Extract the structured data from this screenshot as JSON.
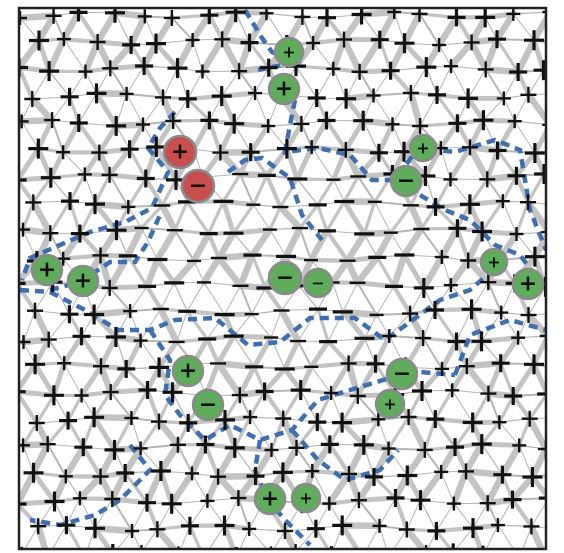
{
  "colors": {
    "frame": "#222222",
    "bond": "#c3c3c3",
    "bond_thin": "#b5b5b5",
    "domain_wall": "#3f6fb0",
    "sign": "#111111",
    "defect_green_fill": "#5fad5c",
    "defect_green_ring": "#8a8a8a",
    "defect_red_fill": "#c94f4f",
    "defect_red_ring": "#8a8a8a"
  },
  "lattice": {
    "type": "triangular",
    "regions": [
      {
        "name": "plus-outer",
        "sign": "+"
      },
      {
        "name": "minus-inner",
        "sign": "−"
      },
      {
        "name": "plus-lower",
        "sign": "+"
      }
    ]
  },
  "defects": [
    {
      "id": "g-top-1",
      "color": "green",
      "sign": "+"
    },
    {
      "id": "g-top-2",
      "color": "green",
      "sign": "+"
    },
    {
      "id": "r-plus",
      "color": "red",
      "sign": "+"
    },
    {
      "id": "r-minus",
      "color": "red",
      "sign": "−"
    },
    {
      "id": "g-upper-right-1",
      "color": "green",
      "sign": "+"
    },
    {
      "id": "g-upper-right-2",
      "color": "green",
      "sign": "−"
    },
    {
      "id": "g-left-1",
      "color": "green",
      "sign": "+"
    },
    {
      "id": "g-left-2",
      "color": "green",
      "sign": "+"
    },
    {
      "id": "g-center-1",
      "color": "green",
      "sign": "−"
    },
    {
      "id": "g-center-2",
      "color": "green",
      "sign": "−"
    },
    {
      "id": "g-right-1",
      "color": "green",
      "sign": "+"
    },
    {
      "id": "g-right-2",
      "color": "green",
      "sign": "+"
    },
    {
      "id": "g-lower-left-1",
      "color": "green",
      "sign": "+"
    },
    {
      "id": "g-lower-left-2",
      "color": "green",
      "sign": "−"
    },
    {
      "id": "g-lower-right-1",
      "color": "green",
      "sign": "−"
    },
    {
      "id": "g-lower-right-2",
      "color": "green",
      "sign": "+"
    },
    {
      "id": "g-bottom-1",
      "color": "green",
      "sign": "+"
    },
    {
      "id": "g-bottom-2",
      "color": "green",
      "sign": "+"
    }
  ]
}
